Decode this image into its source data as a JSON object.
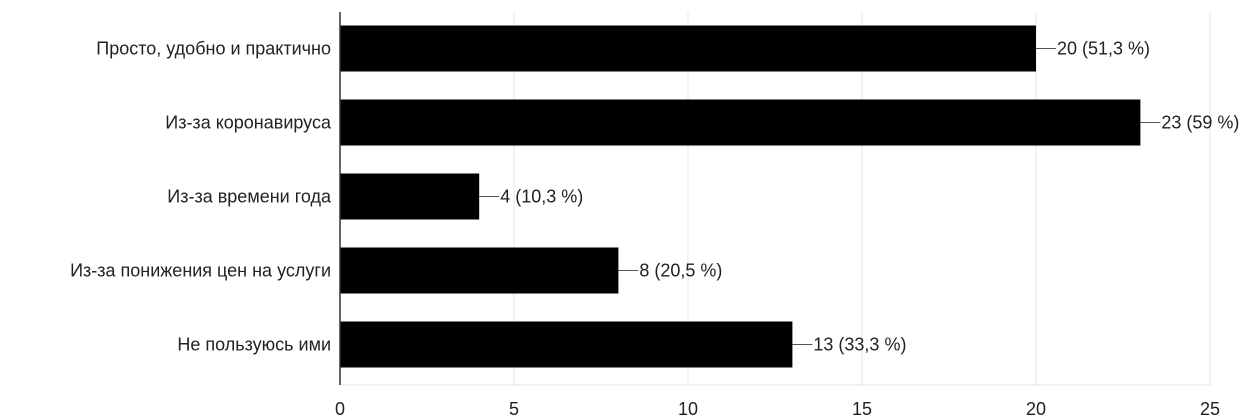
{
  "chart_data": {
    "type": "bar",
    "orientation": "horizontal",
    "categories": [
      "Просто, удобно и практично",
      "Из-за коронавируса",
      "Из-за времени года",
      "Из-за понижения цен на услуги",
      "Не пользуюсь ими"
    ],
    "values": [
      20,
      23,
      4,
      8,
      13
    ],
    "data_labels": [
      "20 (51,3 %)",
      "23 (59 %)",
      "4 (10,3 %)",
      "8 (20,5 %)",
      "13 (33,3 %)"
    ],
    "xlim": [
      0,
      25
    ],
    "x_ticks": [
      0,
      5,
      10,
      15,
      20,
      25
    ],
    "x_tick_labels": [
      "0",
      "5",
      "10",
      "15",
      "20",
      "25"
    ],
    "grid": "vertical",
    "legend": "none",
    "title": "",
    "xlabel": "",
    "ylabel": ""
  },
  "colors": {
    "bar": "#000000",
    "grid": "#e4e4e4",
    "axis": "#333333",
    "leader": "#555555",
    "text": "#222222",
    "background": "#ffffff"
  }
}
